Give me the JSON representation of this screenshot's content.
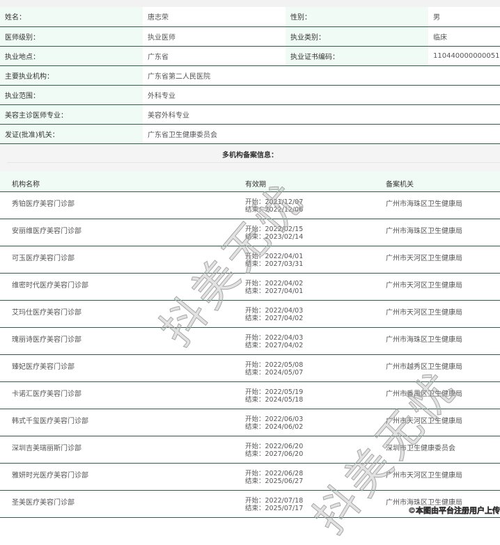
{
  "info": [
    [
      {
        "l": "姓名：",
        "v": "唐志荣"
      },
      {
        "l": "性别：",
        "v": "男"
      }
    ],
    [
      {
        "l": "医师级别：",
        "v": "执业医师"
      },
      {
        "l": "执业类别：",
        "v": "临床"
      }
    ],
    [
      {
        "l": "执业地点：",
        "v": "广东省"
      },
      {
        "l": "执业证书编码：",
        "v": "110440000000051"
      }
    ]
  ],
  "info_wide": [
    {
      "l": "主要执业机构：",
      "v": "广东省第二人民医院"
    },
    {
      "l": "执业范围：",
      "v": "外科专业"
    },
    {
      "l": "美容主诊医师专业：",
      "v": "美容外科专业"
    },
    {
      "l": "发证(批准)机关：",
      "v": "广东省卫生健康委员会"
    }
  ],
  "section_title": "多机构备案信息：",
  "columns": [
    "机构名称",
    "有效期",
    "备案机关"
  ],
  "rows": [
    {
      "name": "秀铂医疗美容门诊部",
      "start": "开始：2021/12/07",
      "end": "结束：2022/12/06",
      "agency": "广州市海珠区卫生健康局"
    },
    {
      "name": "安丽维医疗美容门诊部",
      "start": "开始：2022/02/15",
      "end": "结束：2023/02/14",
      "agency": "广州市海珠区卫生健康局"
    },
    {
      "name": "可玉医疗美容门诊部",
      "start": "开始：2022/04/01",
      "end": "结束：2027/03/31",
      "agency": "广州市天河区卫生健康局"
    },
    {
      "name": "维密时代医疗美容门诊部",
      "start": "开始：2022/04/02",
      "end": "结束：2027/04/01",
      "agency": "广州市天河区卫生健康局"
    },
    {
      "name": "艾玛仕医疗美容门诊部",
      "start": "开始：2022/04/03",
      "end": "结束：2027/04/02",
      "agency": "广州市天河区卫生健康局"
    },
    {
      "name": "瑰丽诗医疗美容门诊部",
      "start": "开始：2022/04/03",
      "end": "结束：2027/04/02",
      "agency": "广州市海珠区卫生健康局"
    },
    {
      "name": "臻妃医疗美容门诊部",
      "start": "开始：2022/05/08",
      "end": "结束：2024/05/07",
      "agency": "广州市越秀区卫生健康局"
    },
    {
      "name": "卡诺汇医疗美容门诊部",
      "start": "开始：2022/05/19",
      "end": "结束：2024/05/18",
      "agency": "广州市番禺区卫生健康局"
    },
    {
      "name": "韩式千玺医疗美容门诊部",
      "start": "开始：2022/06/03",
      "end": "结束：2024/06/02",
      "agency": "广州市天河区卫生健康局"
    },
    {
      "name": "深圳吉美瑞丽斯门诊部",
      "start": "开始：2022/06/20",
      "end": "结束：2027/06/20",
      "agency": "深圳市卫生健康委员会"
    },
    {
      "name": "雅妍时光医疗美容门诊部",
      "start": "开始：2022/06/28",
      "end": "结束：2025/06/27",
      "agency": "广州市天河区卫生健康局"
    },
    {
      "name": "圣美医疗美容门诊部",
      "start": "开始：2022/07/18",
      "end": "结束：2025/07/17",
      "agency": "广州市海珠区卫生健康局"
    }
  ],
  "watermark": "抖美无忧",
  "credit": "©本图由平台注册用户上传"
}
